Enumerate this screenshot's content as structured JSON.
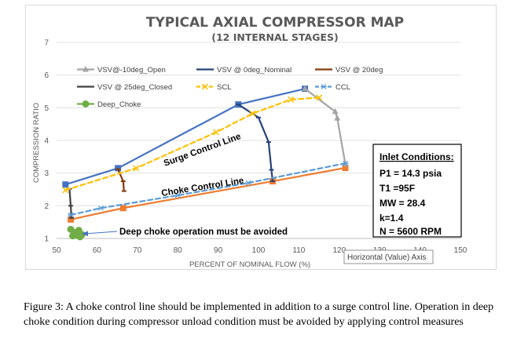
{
  "chart_data": {
    "type": "line",
    "title": "TYPICAL AXIAL COMPRESSOR MAP",
    "subtitle": "(12 INTERNAL STAGES)",
    "xlabel": "PERCENT OF NOMINAL FLOW (%)",
    "ylabel": "COMPRESSION RATIO",
    "xlim": [
      50,
      150
    ],
    "ylim": [
      1,
      7
    ],
    "xticks": [
      "50",
      "60",
      "70",
      "80",
      "90",
      "100",
      "110",
      "120",
      "130",
      "140",
      "150"
    ],
    "yticks": [
      "1",
      "2",
      "3",
      "4",
      "5",
      "6",
      "7"
    ],
    "grid": "horizontal",
    "legend_position": "top-left",
    "series": [
      {
        "name": "VSV@-10deg_Open",
        "color": "#a5a5a5",
        "marker": "triangle",
        "x": [
          111.5,
          119,
          119.5,
          121.5
        ],
        "y": [
          5.58,
          4.88,
          4.68,
          3.28
        ]
      },
      {
        "name": "VSV @ 0deg_Nominal",
        "color": "#264478",
        "marker": "dash",
        "x": [
          95,
          100,
          102.5,
          103.2,
          103.5
        ],
        "y": [
          5.1,
          4.7,
          3.95,
          3.1,
          2.75
        ]
      },
      {
        "name": "VSV @ 20deg",
        "color": "#843c0c",
        "marker": "dash",
        "x": [
          65.2,
          66.5,
          66.7
        ],
        "y": [
          3.12,
          2.75,
          2.45
        ]
      },
      {
        "name": "VSV @ 25deg_Closed",
        "color": "#404040",
        "marker": "dash",
        "x": [
          53.2,
          53.5,
          53.7
        ],
        "y": [
          2.52,
          2.0,
          1.63
        ]
      },
      {
        "name": "SCL",
        "color": "#ffc000",
        "marker": "x",
        "dash": true,
        "x": [
          52.2,
          69.7,
          89.5,
          98.5,
          108,
          115
        ],
        "y": [
          2.48,
          3.15,
          4.25,
          4.82,
          5.25,
          5.31
        ]
      },
      {
        "name": "CCL",
        "color": "#5b9bd5",
        "marker": "asterisk",
        "dash": true,
        "x": [
          53.5,
          61,
          80,
          97.5,
          121.5
        ],
        "y": [
          1.72,
          1.93,
          2.32,
          2.7,
          3.3
        ]
      },
      {
        "name": "Deep_Choke",
        "color": "#70ad47",
        "marker": "circle",
        "x": [
          53.5,
          54.5,
          55,
          55.5,
          56.3,
          54,
          55.8
        ],
        "y": [
          1.28,
          1.18,
          1.1,
          1.25,
          1.12,
          1.08,
          1.05
        ]
      }
    ],
    "unlabeled_series": [
      {
        "color": "#4472c4",
        "marker": "square",
        "x": [
          52.2,
          65.2,
          95,
          111.5
        ],
        "y": [
          2.65,
          3.15,
          5.1,
          5.58
        ]
      },
      {
        "color": "#ed7d31",
        "marker": "square",
        "x": [
          53.5,
          66.5,
          103.5,
          121.5
        ],
        "y": [
          1.58,
          1.93,
          2.75,
          3.16
        ]
      }
    ],
    "annotations": {
      "surge_label": "Surge Control Line",
      "choke_label": "Choke Control Line",
      "deep_choke_note": "Deep choke operation must be avoided",
      "tooltip": "Horizontal (Value) Axis"
    },
    "inlet_box": {
      "title": "Inlet Conditions:",
      "lines": [
        "P1 = 14.3 psia",
        "T1 =95F",
        "MW = 28.4",
        "k=1.4",
        "N = 5600 RPM"
      ]
    }
  },
  "caption": "Figure 3: A choke control line should be implemented in addition to a surge control line. Operation in deep choke condition during compressor unload condition must be avoided by applying control measures"
}
